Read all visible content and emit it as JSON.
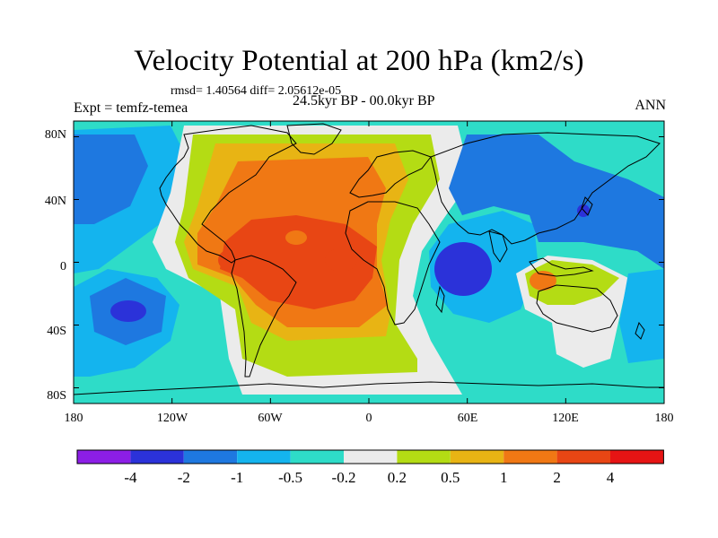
{
  "title": "Velocity Potential at 200 hPa (km2/s)",
  "stats": "rmsd= 1.40564 diff= 2.05612e-05",
  "experiment": "Expt = temfz-temea",
  "period": "24.5kyr BP - 00.0kyr BP",
  "season": "ANN",
  "lat_ticks": [
    "80N",
    "40N",
    "0",
    "40S",
    "80S"
  ],
  "lat_values": [
    80,
    40,
    0,
    -40,
    -80
  ],
  "lon_ticks": [
    "180",
    "120W",
    "60W",
    "0",
    "60E",
    "120E",
    "180"
  ],
  "lon_values": [
    -180,
    -120,
    -60,
    0,
    60,
    120,
    180
  ],
  "colorbar": {
    "labels": [
      "-4",
      "-2",
      "-1",
      "-0.5",
      "-0.2",
      "0.2",
      "0.5",
      "1",
      "2",
      "4"
    ],
    "colors": [
      "#8c1ee6",
      "#2b32d9",
      "#1e78e0",
      "#14b4ee",
      "#2edcc8",
      "#ebebeb",
      "#b4dc14",
      "#e8b414",
      "#f07814",
      "#e84614",
      "#e61414"
    ]
  },
  "map_colors": {
    "c_m4": "#2b32d9",
    "c_m2": "#1e78e0",
    "c_m1": "#14b4ee",
    "c_m05": "#2edcc8",
    "c_0": "#ebebeb",
    "c_05": "#b4dc14",
    "c_1": "#e8b414",
    "c_2": "#f07814",
    "c_4": "#e84614"
  }
}
